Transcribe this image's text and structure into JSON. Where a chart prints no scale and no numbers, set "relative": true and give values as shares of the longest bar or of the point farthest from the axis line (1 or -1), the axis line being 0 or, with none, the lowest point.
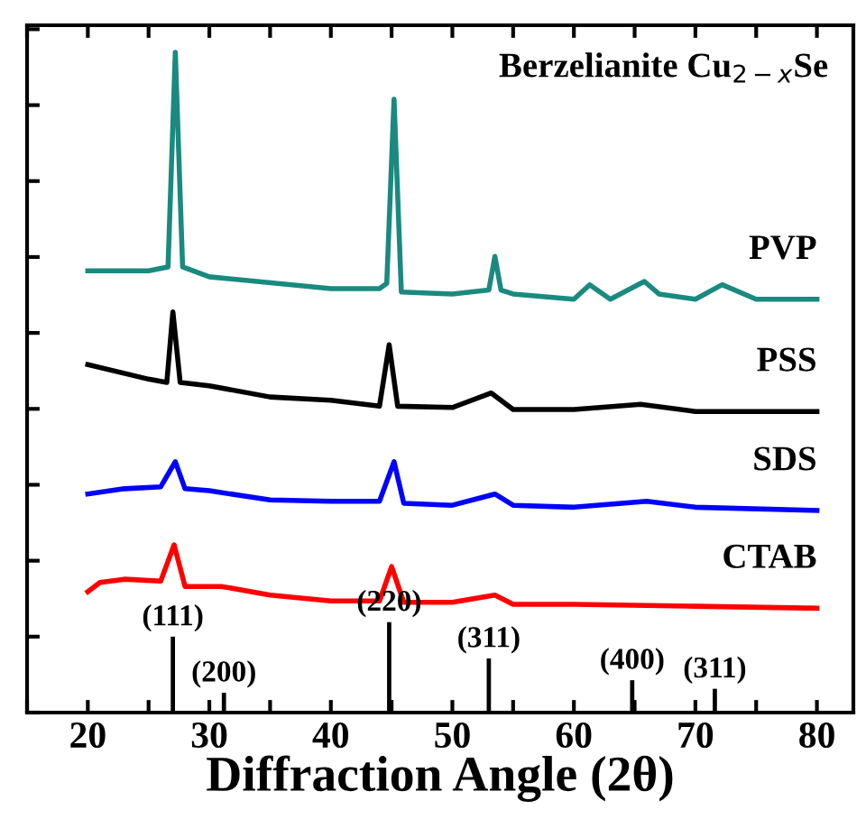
{
  "chart_data": {
    "type": "line",
    "relative": true,
    "title": "Berzelianite Cu$_{2−x}$Se",
    "xlabel": "Diffraction Angle (2θ)",
    "xlim": [
      15,
      83
    ],
    "xticks": [
      {
        "value": 15,
        "label": null
      },
      20,
      {
        "value": 25,
        "label": null
      },
      30,
      {
        "value": 35,
        "label": null
      },
      40,
      {
        "value": 45,
        "label": null
      },
      50,
      {
        "value": 55,
        "label": null
      },
      60,
      {
        "value": 65,
        "label": null
      },
      70,
      {
        "value": 75,
        "label": null
      },
      80
    ],
    "tick_labels": "x",
    "grid": false,
    "legend": false,
    "line_style": "solid",
    "marker": "none",
    "series": [
      {
        "name": "PVP",
        "color": "#1a8a80",
        "x": [
          20,
          25,
          26.6,
          27.2,
          27.8,
          30,
          40,
          44,
          44.6,
          45.2,
          45.8,
          50,
          53,
          53.5,
          54,
          55,
          60,
          61.3,
          63,
          65.8,
          67,
          70,
          72.2,
          75,
          80
        ],
        "values": [
          0.669,
          0.669,
          0.675,
          1.0,
          0.675,
          0.66,
          0.642,
          0.642,
          0.65,
          0.929,
          0.637,
          0.634,
          0.64,
          0.691,
          0.64,
          0.634,
          0.626,
          0.648,
          0.626,
          0.653,
          0.634,
          0.626,
          0.648,
          0.626,
          0.626
        ]
      },
      {
        "name": "PSS",
        "color": "#000000",
        "x": [
          20,
          25,
          26.5,
          27.0,
          27.6,
          30,
          35,
          40,
          44,
          44.8,
          45.5,
          50,
          53.2,
          55,
          60,
          65.5,
          70,
          80
        ],
        "values": [
          0.527,
          0.505,
          0.5,
          0.607,
          0.5,
          0.495,
          0.478,
          0.473,
          0.464,
          0.557,
          0.464,
          0.462,
          0.484,
          0.459,
          0.459,
          0.467,
          0.456,
          0.456
        ]
      },
      {
        "name": "SDS",
        "color": "#0000ff",
        "x": [
          20,
          23,
          26,
          27.2,
          28,
          30,
          35,
          40,
          44,
          45.2,
          46,
          50,
          53.5,
          55,
          60,
          66,
          70,
          80
        ],
        "values": [
          0.331,
          0.339,
          0.342,
          0.38,
          0.339,
          0.336,
          0.322,
          0.32,
          0.32,
          0.38,
          0.317,
          0.314,
          0.331,
          0.314,
          0.311,
          0.32,
          0.311,
          0.306
        ]
      },
      {
        "name": "CTAB",
        "color": "#ff0000",
        "x": [
          20,
          21,
          23,
          26,
          27.1,
          28,
          31,
          35,
          40,
          44,
          45.0,
          46,
          50,
          53.5,
          55,
          60,
          70,
          80
        ],
        "values": [
          0.183,
          0.197,
          0.202,
          0.199,
          0.254,
          0.191,
          0.191,
          0.178,
          0.169,
          0.169,
          0.221,
          0.167,
          0.167,
          0.178,
          0.164,
          0.164,
          0.161,
          0.158
        ]
      },
      {
        "type": "bar",
        "color": "#000000",
        "x": [
          27.0,
          31.2,
          44.8,
          53.0,
          64.8,
          71.6
        ],
        "values": [
          0.115,
          0.03,
          0.137,
          0.082,
          0.049,
          0.036
        ]
      }
    ],
    "annotations": [
      {
        "text": "(111)",
        "x": 27.0,
        "y": 0.115
      },
      {
        "text": "(200)",
        "x": 31.2,
        "y": 0.03
      },
      {
        "text": "(220)",
        "x": 44.8,
        "y": 0.137
      },
      {
        "text": "(311)",
        "x": 53.0,
        "y": 0.082
      },
      {
        "text": "(400)",
        "x": 64.8,
        "y": 0.049
      },
      {
        "text": "(311)",
        "x": 71.6,
        "y": 0.036
      }
    ]
  }
}
